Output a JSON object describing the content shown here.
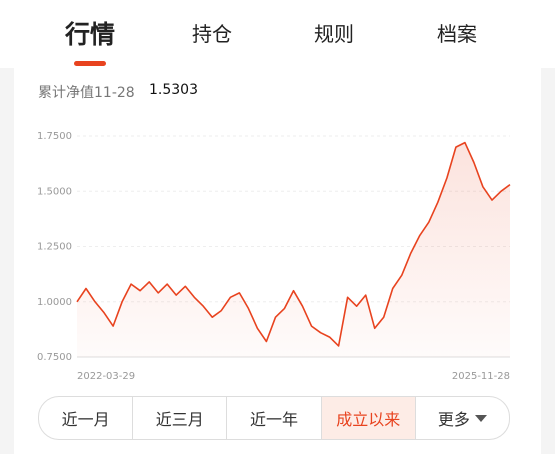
{
  "tabs": [
    "行情",
    "持仓",
    "规则",
    "档案"
  ],
  "nav_label": "累计净值11-28",
  "nav_value": "1.5303",
  "chart_data": {
    "type": "line",
    "categories": [
      "2022-03-29",
      null,
      null,
      null,
      null,
      null,
      null,
      null,
      null,
      null,
      null,
      null,
      null,
      null,
      null,
      null,
      null,
      null,
      null,
      null,
      null,
      null,
      null,
      null,
      null,
      null,
      null,
      null,
      null,
      null,
      null,
      null,
      null,
      null,
      null,
      null,
      null,
      null,
      null,
      null,
      null,
      null,
      null,
      null,
      null,
      null,
      null,
      null,
      "2025-11-28"
    ],
    "values": [
      1.0,
      1.06,
      1.0,
      0.95,
      0.89,
      1.0,
      1.08,
      1.05,
      1.09,
      1.04,
      1.08,
      1.03,
      1.07,
      1.02,
      0.98,
      0.93,
      0.96,
      1.02,
      1.04,
      0.97,
      0.88,
      0.82,
      0.93,
      0.97,
      1.05,
      0.98,
      0.89,
      0.86,
      0.84,
      0.8,
      1.02,
      0.98,
      1.03,
      0.88,
      0.93,
      1.06,
      1.12,
      1.22,
      1.3,
      1.36,
      1.45,
      1.56,
      1.7,
      1.72,
      1.63,
      1.52,
      1.46,
      1.5,
      1.5303
    ],
    "color": "#e8431f",
    "ylim": [
      0.75,
      1.75
    ],
    "yticks": [
      {
        "value": 0.75,
        "label": "0.7500"
      },
      {
        "value": 1.0,
        "label": "1.0000"
      },
      {
        "value": 1.25,
        "label": "1.2500"
      },
      {
        "value": 1.5,
        "label": "1.5000"
      },
      {
        "value": 1.75,
        "label": "1.7500"
      }
    ],
    "grid": true
  },
  "ranges": [
    "近一月",
    "近三月",
    "近一年",
    "成立以来",
    "更多"
  ],
  "active_range": 3
}
